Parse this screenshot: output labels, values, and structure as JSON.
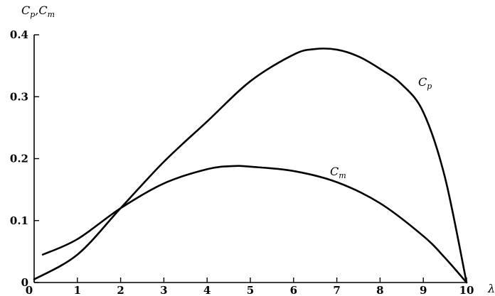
{
  "chart_data": {
    "type": "line",
    "title": "",
    "xlabel": "λ",
    "ylabel": "Cp,Cm",
    "xlim": [
      0,
      10
    ],
    "ylim": [
      0,
      0.4
    ],
    "x_ticks": [
      "0",
      "1",
      "2",
      "3",
      "4",
      "5",
      "6",
      "7",
      "8",
      "9",
      "10"
    ],
    "y_ticks": [
      "0",
      "0.1",
      "0.2",
      "0.3",
      "0.4"
    ],
    "grid": false,
    "legend": "none",
    "series": [
      {
        "name": "Cp",
        "label_main": "C",
        "label_sub": "p",
        "x": [
          0,
          1,
          2,
          3,
          4,
          5,
          6,
          6.5,
          7,
          7.5,
          8,
          8.5,
          9,
          9.5,
          10
        ],
        "y": [
          0.005,
          0.045,
          0.12,
          0.195,
          0.26,
          0.325,
          0.368,
          0.377,
          0.376,
          0.365,
          0.345,
          0.32,
          0.275,
          0.17,
          0.0
        ]
      },
      {
        "name": "Cm",
        "label_main": "C",
        "label_sub": "m",
        "x": [
          0.2,
          1,
          2,
          3,
          4,
          4.6,
          5,
          6,
          7,
          8,
          9,
          9.5,
          10
        ],
        "y": [
          0.045,
          0.07,
          0.12,
          0.16,
          0.183,
          0.188,
          0.187,
          0.18,
          0.162,
          0.128,
          0.075,
          0.04,
          0.0
        ]
      }
    ]
  }
}
